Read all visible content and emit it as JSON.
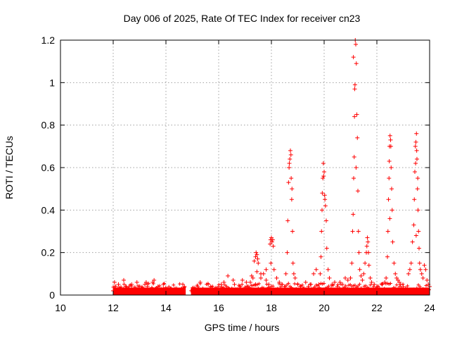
{
  "chart_data": {
    "type": "scatter",
    "title": "Day 006 of 2025, Rate Of TEC Index for receiver cn23",
    "xlabel": "GPS time / hours",
    "ylabel": "ROTI / TECUs",
    "xlim": [
      10,
      24
    ],
    "ylim": [
      0,
      1.2
    ],
    "xticks": [
      10,
      12,
      14,
      16,
      18,
      20,
      22,
      24
    ],
    "xtick_labels": [
      "10",
      "12",
      "14",
      "16",
      "18",
      "20",
      "22",
      "24"
    ],
    "yticks": [
      0,
      0.2,
      0.4,
      0.6,
      0.8,
      1.0,
      1.2
    ],
    "ytick_labels": [
      "0",
      "0.2",
      "0.4",
      "0.6",
      "0.8",
      "1",
      "1.2"
    ],
    "grid": true,
    "marker": "+",
    "color": "#ff0000",
    "series": [
      {
        "name": "ROTI",
        "x": [
          12.0,
          12.1,
          12.2,
          12.3,
          12.4,
          12.5,
          12.6,
          12.7,
          12.8,
          12.9,
          13.0,
          13.1,
          13.2,
          13.3,
          13.4,
          13.5,
          13.6,
          13.7,
          13.8,
          13.9,
          14.0,
          14.2,
          14.4,
          14.6,
          14.7,
          12.1,
          12.4,
          12.7,
          13.0,
          13.3,
          13.55,
          13.8,
          14.3,
          12.05,
          12.35,
          12.6,
          12.95,
          13.25,
          13.6,
          13.9,
          14.5,
          15.0,
          15.2,
          15.4,
          15.6,
          15.8,
          16.0,
          16.2,
          16.4,
          16.6,
          16.8,
          17.0,
          17.2,
          17.4,
          17.6,
          17.8,
          15.1,
          15.5,
          15.9,
          16.3,
          16.7,
          17.1,
          17.5,
          17.9,
          15.3,
          15.7,
          16.1,
          16.5,
          16.9,
          17.3,
          17.7,
          16.35,
          16.55,
          17.05,
          17.25,
          17.45,
          17.6,
          17.8,
          17.35,
          17.4,
          17.42,
          17.45,
          17.48,
          17.5,
          17.95,
          17.97,
          18.0,
          18.02,
          18.05,
          18.07,
          17.98,
          18.1,
          18.2,
          18.3,
          18.4,
          18.5,
          18.55,
          18.6,
          18.62,
          18.65,
          18.67,
          18.7,
          18.72,
          18.75,
          18.77,
          18.8,
          18.82,
          18.85,
          18.9,
          19.0,
          19.1,
          19.2,
          19.3,
          19.4,
          19.5,
          19.6,
          19.7,
          18.68,
          18.74,
          18.78,
          19.8,
          19.85,
          19.88,
          19.9,
          19.92,
          19.95,
          19.97,
          20.0,
          20.02,
          20.05,
          20.08,
          20.1,
          20.15,
          20.2,
          20.3,
          20.4,
          20.5,
          20.6,
          20.7,
          20.8,
          20.9,
          19.93,
          19.98,
          20.03,
          21.0,
          21.05,
          21.08,
          21.1,
          21.12,
          21.14,
          21.15,
          21.16,
          21.18,
          21.2,
          21.22,
          21.24,
          21.26,
          21.28,
          21.3,
          21.32,
          21.35,
          21.4,
          21.45,
          21.5,
          21.55,
          21.6,
          21.62,
          21.64,
          21.66,
          21.68,
          21.7,
          21.75,
          21.8,
          21.9,
          22.0,
          22.1,
          22.2,
          22.3,
          21.11,
          21.17,
          21.21,
          22.35,
          22.4,
          22.42,
          22.44,
          22.46,
          22.48,
          22.5,
          22.52,
          22.54,
          22.56,
          22.58,
          22.6,
          22.65,
          22.7,
          22.75,
          22.8,
          22.85,
          22.9,
          23.0,
          23.1,
          23.2,
          22.47,
          22.53,
          22.49,
          23.25,
          23.3,
          23.35,
          23.4,
          23.42,
          23.44,
          23.46,
          23.48,
          23.5,
          23.52,
          23.54,
          23.56,
          23.58,
          23.6,
          23.62,
          23.65,
          23.7,
          23.75,
          23.8,
          23.85,
          23.9,
          23.95,
          24.0,
          23.47,
          23.51,
          23.49,
          23.55
        ],
        "y": [
          0.02,
          0.04,
          0.05,
          0.03,
          0.07,
          0.04,
          0.03,
          0.05,
          0.02,
          0.06,
          0.04,
          0.03,
          0.05,
          0.04,
          0.02,
          0.06,
          0.03,
          0.04,
          0.02,
          0.03,
          0.02,
          0.03,
          0.02,
          0.03,
          0.04,
          0.01,
          0.03,
          0.02,
          0.01,
          0.02,
          0.07,
          0.01,
          0.01,
          0.06,
          0.02,
          0.04,
          0.03,
          0.06,
          0.02,
          0.05,
          0.02,
          0.02,
          0.04,
          0.03,
          0.05,
          0.02,
          0.04,
          0.06,
          0.03,
          0.05,
          0.04,
          0.03,
          0.06,
          0.05,
          0.08,
          0.07,
          0.01,
          0.02,
          0.01,
          0.03,
          0.02,
          0.04,
          0.03,
          0.05,
          0.06,
          0.04,
          0.05,
          0.03,
          0.07,
          0.08,
          0.1,
          0.09,
          0.07,
          0.06,
          0.09,
          0.11,
          0.1,
          0.12,
          0.16,
          0.18,
          0.2,
          0.19,
          0.17,
          0.15,
          0.24,
          0.26,
          0.27,
          0.25,
          0.26,
          0.23,
          0.15,
          0.12,
          0.08,
          0.06,
          0.05,
          0.04,
          0.1,
          0.2,
          0.35,
          0.53,
          0.6,
          0.64,
          0.68,
          0.55,
          0.45,
          0.3,
          0.15,
          0.1,
          0.08,
          0.05,
          0.04,
          0.03,
          0.06,
          0.04,
          0.05,
          0.1,
          0.12,
          0.62,
          0.66,
          0.5,
          0.05,
          0.1,
          0.18,
          0.3,
          0.4,
          0.55,
          0.62,
          0.58,
          0.47,
          0.42,
          0.35,
          0.22,
          0.12,
          0.08,
          0.05,
          0.06,
          0.04,
          0.06,
          0.05,
          0.08,
          0.07,
          0.48,
          0.56,
          0.45,
          0.08,
          0.15,
          0.3,
          0.38,
          0.55,
          0.65,
          0.84,
          0.97,
          1.2,
          1.18,
          1.09,
          0.85,
          0.74,
          0.49,
          0.3,
          0.2,
          0.12,
          0.09,
          0.07,
          0.1,
          0.15,
          0.2,
          0.23,
          0.27,
          0.25,
          0.2,
          0.14,
          0.08,
          0.06,
          0.05,
          0.04,
          0.03,
          0.05,
          0.06,
          1.12,
          0.99,
          0.6,
          0.08,
          0.18,
          0.3,
          0.45,
          0.55,
          0.7,
          0.75,
          0.73,
          0.6,
          0.5,
          0.4,
          0.25,
          0.15,
          0.1,
          0.08,
          0.07,
          0.06,
          0.05,
          0.04,
          0.03,
          0.1,
          0.63,
          0.7,
          0.36,
          0.12,
          0.15,
          0.25,
          0.33,
          0.45,
          0.58,
          0.7,
          0.72,
          0.76,
          0.64,
          0.5,
          0.4,
          0.3,
          0.22,
          0.15,
          0.12,
          0.1,
          0.08,
          0.14,
          0.12,
          0.07,
          0.05,
          0.04,
          0.62,
          0.68,
          0.28,
          0.55
        ]
      }
    ]
  }
}
